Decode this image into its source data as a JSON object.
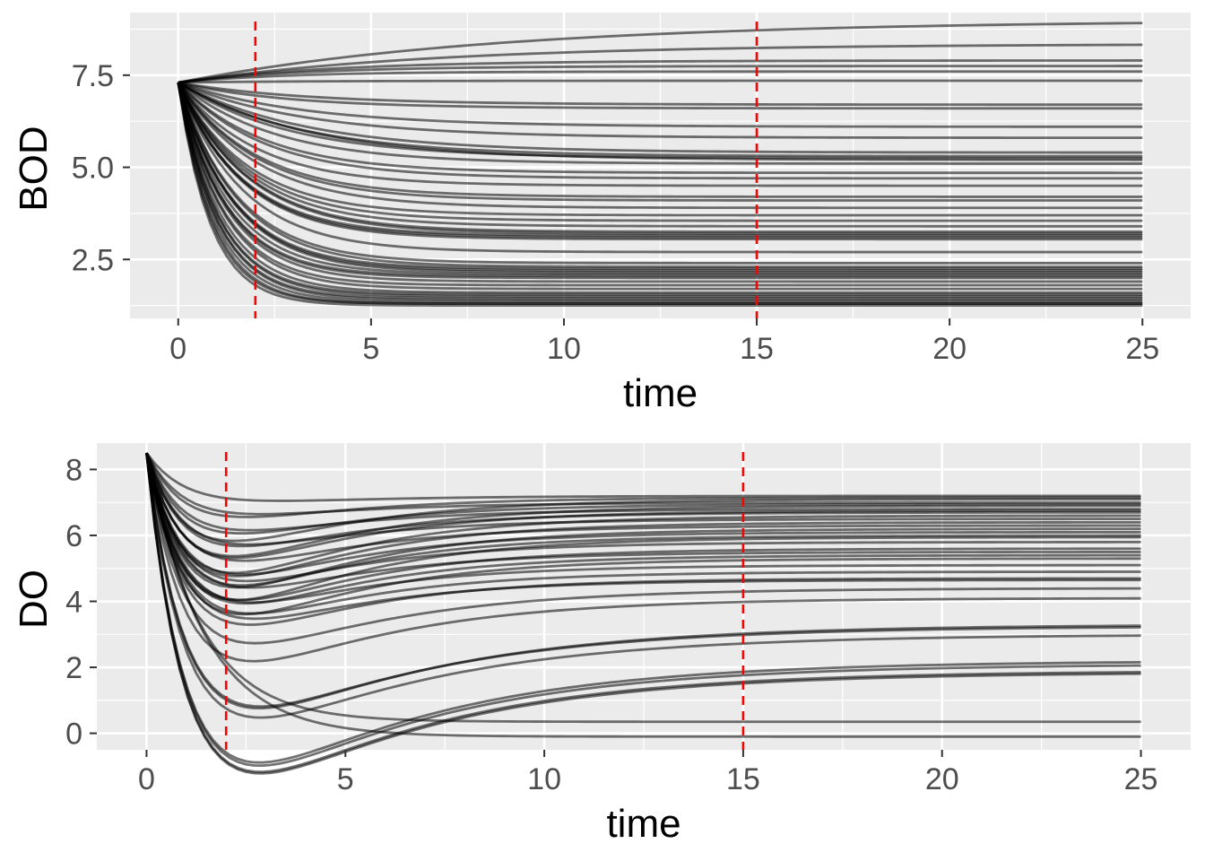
{
  "chart_data": [
    {
      "type": "line",
      "title": "",
      "xlabel": "time",
      "ylabel": "BOD",
      "xlim": [
        -1.25,
        26.25
      ],
      "ylim": [
        0.9,
        9.2
      ],
      "x_ticks": [
        0,
        5,
        10,
        15,
        20,
        25
      ],
      "x_tick_labels": [
        "0",
        "5",
        "10",
        "15",
        "20",
        "25"
      ],
      "y_ticks": [
        2.5,
        5.0,
        7.5
      ],
      "y_tick_labels": [
        "2.5",
        "5.0",
        "7.5"
      ],
      "grid": true,
      "legend": "none",
      "vlines": [
        2,
        15
      ],
      "vline_color": "#ff0000",
      "line_color": "#000000",
      "panel_color": "#ebebeb",
      "curve_model": "exponential approach from initial value to final value",
      "start": 7.3,
      "finals": [
        9.0,
        8.35,
        7.9,
        7.75,
        7.6,
        7.35,
        6.7,
        6.6,
        6.1,
        5.8,
        5.4,
        5.3,
        5.25,
        5.2,
        5.1,
        4.85,
        4.7,
        4.5,
        4.2,
        4.1,
        3.9,
        3.7,
        3.55,
        3.4,
        3.25,
        3.2,
        3.15,
        3.1,
        3.05,
        2.7,
        2.4,
        2.3,
        2.25,
        2.2,
        2.15,
        2.1,
        2.05,
        2.0,
        1.9,
        1.8,
        1.7,
        1.6,
        1.55,
        1.5,
        1.45,
        1.4,
        1.35,
        1.3,
        1.3,
        1.25
      ],
      "rates": [
        0.12,
        0.15,
        0.25,
        0.3,
        0.35,
        0.3,
        0.3,
        0.35,
        0.3,
        0.3,
        0.3,
        0.32,
        0.35,
        0.3,
        0.4,
        0.45,
        0.45,
        0.5,
        0.5,
        0.5,
        0.5,
        0.55,
        0.55,
        0.55,
        0.55,
        0.55,
        0.6,
        0.6,
        0.6,
        0.6,
        0.65,
        0.65,
        0.7,
        0.7,
        0.7,
        0.75,
        0.8,
        0.8,
        0.8,
        0.85,
        0.85,
        0.9,
        0.95,
        0.95,
        1.0,
        1.0,
        1.05,
        1.1,
        1.15,
        1.2
      ]
    },
    {
      "type": "line",
      "title": "",
      "xlabel": "time",
      "ylabel": "DO",
      "xlim": [
        -1.25,
        26.25
      ],
      "ylim": [
        -0.5,
        8.8
      ],
      "x_ticks": [
        0,
        5,
        10,
        15,
        20,
        25
      ],
      "x_tick_labels": [
        "0",
        "5",
        "10",
        "15",
        "20",
        "25"
      ],
      "y_ticks": [
        0,
        2,
        4,
        6,
        8
      ],
      "y_tick_labels": [
        "0",
        "2",
        "4",
        "6",
        "8"
      ],
      "grid": true,
      "legend": "none",
      "vlines": [
        2,
        15
      ],
      "vline_color": "#ff0000",
      "line_color": "#000000",
      "panel_color": "#ebebeb",
      "curve_model": "sag curve: dip to minimum then recovery toward final value",
      "start": 8.5,
      "curves": [
        {
          "final": 7.2,
          "dip": 0.6,
          "k1": 1.0,
          "k2": 0.3
        },
        {
          "final": 7.15,
          "dip": 1.8,
          "k1": 1.0,
          "k2": 0.3
        },
        {
          "final": 7.1,
          "dip": 3.5,
          "k1": 1.0,
          "k2": 0.3
        },
        {
          "final": 7.0,
          "dip": 1.2,
          "k1": 1.0,
          "k2": 0.3
        },
        {
          "final": 6.95,
          "dip": 2.6,
          "k1": 1.0,
          "k2": 0.3
        },
        {
          "final": 6.9,
          "dip": 4.2,
          "k1": 1.0,
          "k2": 0.3
        },
        {
          "final": 6.8,
          "dip": 2.0,
          "k1": 1.0,
          "k2": 0.3
        },
        {
          "final": 6.75,
          "dip": 4.0,
          "k1": 1.0,
          "k2": 0.3
        },
        {
          "final": 6.7,
          "dip": 3.0,
          "k1": 1.0,
          "k2": 0.3
        },
        {
          "final": 6.6,
          "dip": 4.8,
          "k1": 1.0,
          "k2": 0.3
        },
        {
          "final": 6.5,
          "dip": 2.4,
          "k1": 1.0,
          "k2": 0.3
        },
        {
          "final": 6.4,
          "dip": 4.6,
          "k1": 1.0,
          "k2": 0.3
        },
        {
          "final": 6.3,
          "dip": 3.2,
          "k1": 1.0,
          "k2": 0.3
        },
        {
          "final": 6.2,
          "dip": 5.0,
          "k1": 1.0,
          "k2": 0.3
        },
        {
          "final": 6.1,
          "dip": 3.8,
          "k1": 1.0,
          "k2": 0.3
        },
        {
          "final": 6.0,
          "dip": 4.4,
          "k1": 1.0,
          "k2": 0.3
        },
        {
          "final": 5.95,
          "dip": 5.4,
          "k1": 1.0,
          "k2": 0.3
        },
        {
          "final": 5.8,
          "dip": 3.6,
          "k1": 1.0,
          "k2": 0.3
        },
        {
          "final": 5.6,
          "dip": 4.6,
          "k1": 1.0,
          "k2": 0.3
        },
        {
          "final": 5.5,
          "dip": 3.4,
          "k1": 1.0,
          "k2": 0.3
        },
        {
          "final": 5.4,
          "dip": 4.4,
          "k1": 1.0,
          "k2": 0.3
        },
        {
          "final": 5.3,
          "dip": 5.0,
          "k1": 1.0,
          "k2": 0.3
        },
        {
          "final": 5.1,
          "dip": 3.6,
          "k1": 1.0,
          "k2": 0.3
        },
        {
          "final": 4.9,
          "dip": 4.0,
          "k1": 1.0,
          "k2": 0.3
        },
        {
          "final": 4.7,
          "dip": 4.4,
          "k1": 1.0,
          "k2": 0.3
        },
        {
          "final": 4.65,
          "dip": 3.8,
          "k1": 1.0,
          "k2": 0.3
        },
        {
          "final": 4.4,
          "dip": 4.4,
          "k1": 1.0,
          "k2": 0.25
        },
        {
          "final": 4.1,
          "dip": 5.0,
          "k1": 1.0,
          "k2": 0.25
        },
        {
          "final": 3.3,
          "dip": 5.6,
          "k1": 1.0,
          "k2": 0.2
        },
        {
          "final": 3.25,
          "dip": 5.4,
          "k1": 1.0,
          "k2": 0.2
        },
        {
          "final": 3.0,
          "dip": 5.6,
          "k1": 1.0,
          "k2": 0.2
        },
        {
          "final": 2.2,
          "dip": 6.8,
          "k1": 1.0,
          "k2": 0.2
        },
        {
          "final": 2.1,
          "dip": 6.8,
          "k1": 1.0,
          "k2": 0.2
        },
        {
          "final": 1.9,
          "dip": 6.8,
          "k1": 1.0,
          "k2": 0.2
        },
        {
          "final": 1.85,
          "dip": 6.8,
          "k1": 1.0,
          "k2": 0.2
        },
        {
          "final": 0.35,
          "dip": 0,
          "k1": 0.75,
          "k2": 0.1
        },
        {
          "final": -0.1,
          "dip": 0,
          "k1": 0.7,
          "k2": 0.08
        }
      ]
    }
  ]
}
